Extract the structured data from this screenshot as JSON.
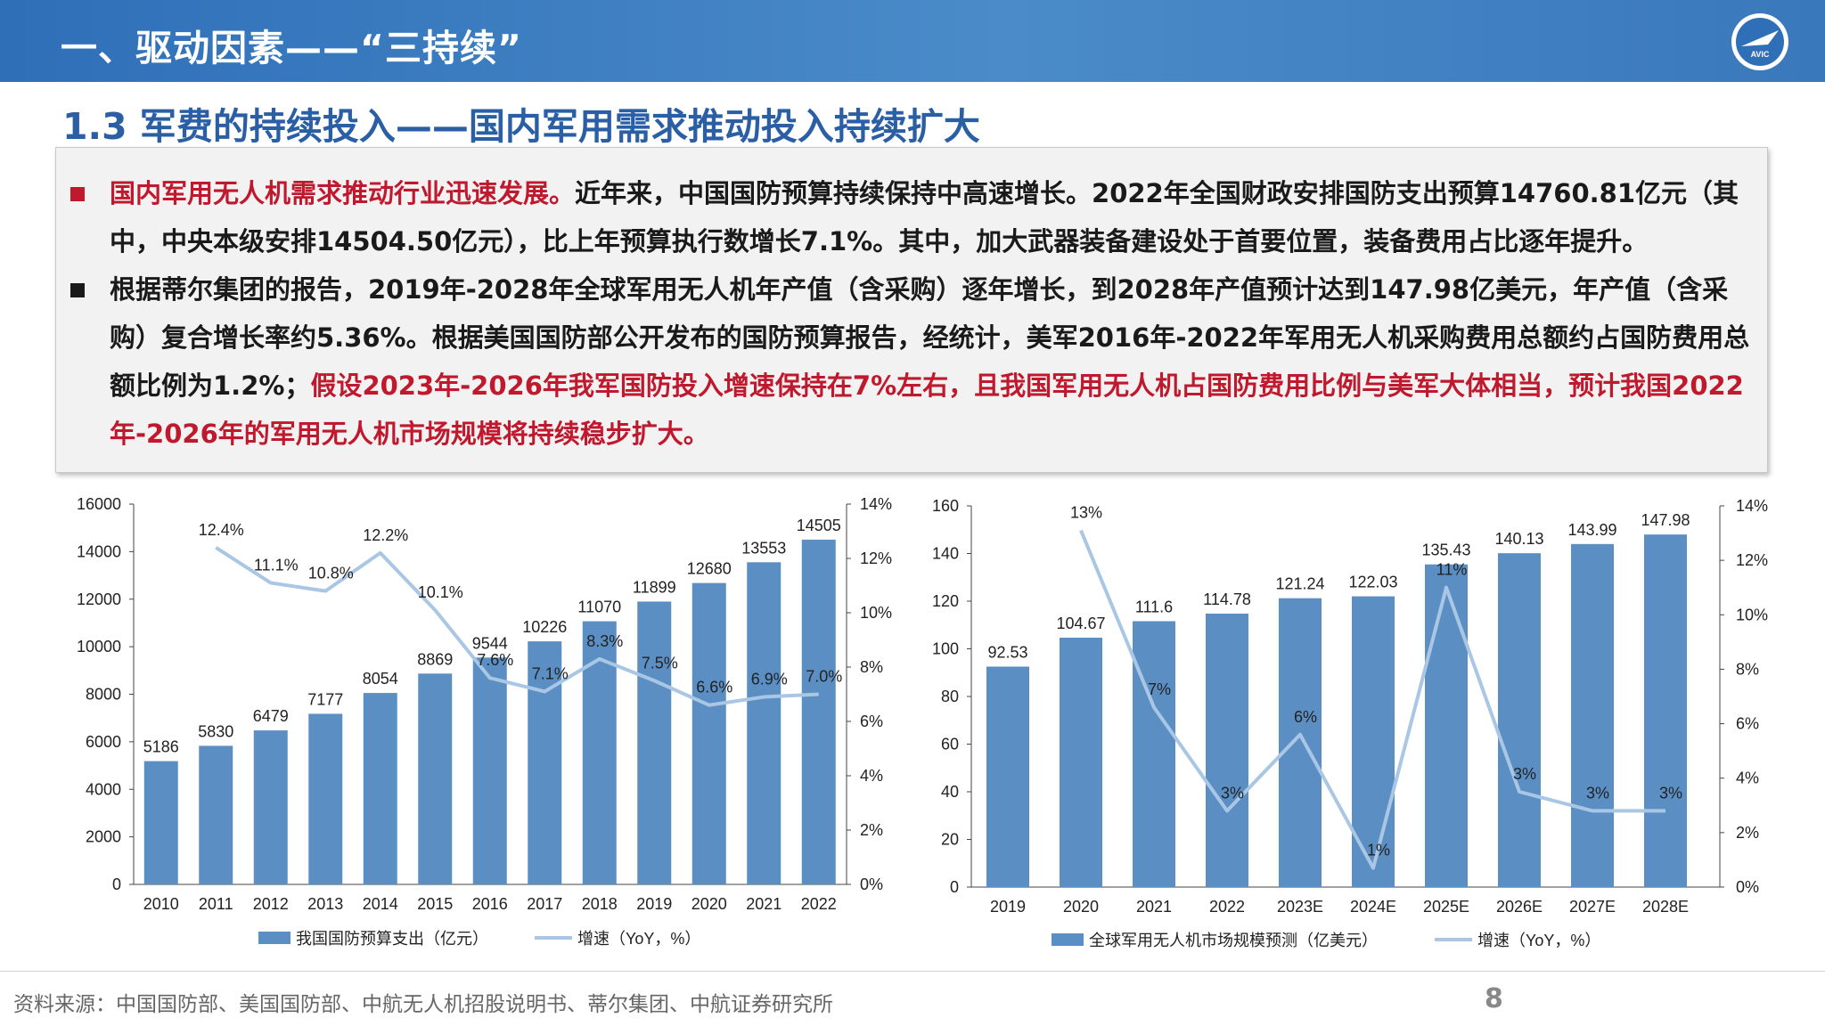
{
  "header": {
    "title": "一、驱动因素——“三持续”",
    "logo_text": "AVIC"
  },
  "subtitle": "1.3 军费的持续投入——国内军用需求推动投入持续扩大",
  "paragraphs": {
    "p1_red": "国内军用无人机需求推动行业迅速发展。",
    "p1_rest": "近年来，中国国防预算持续保持中高速增长。2022年全国财政安排国防支出预算14760.81亿元（其中，中央本级安排14504.50亿元），比上年预算执行数增长7.1%。其中，加大武器装备建设处于首要位置，装备费用占比逐年提升。",
    "p2_black": "根据蒂尔集团的报告，2019年-2028年全球军用无人机年产值（含采购）逐年增长，到2028年产值预计达到147.98亿美元，年产值（含采购）复合增长率约5.36%。根据美国国防部公开发布的国防预算报告，经统计，美军2016年-2022年军用无人机采购费用总额约占国防费用总额比例为1.2%；",
    "p2_red": "假设2023年-2026年我军国防投入增速保持在7%左右，且我国军用无人机占国防费用比例与美军大体相当，预计我国2022年-2026年的军用无人机市场规模将持续稳步扩大。"
  },
  "chart_data": [
    {
      "type": "bar",
      "categories": [
        "2010",
        "2011",
        "2012",
        "2013",
        "2014",
        "2015",
        "2016",
        "2017",
        "2018",
        "2019",
        "2020",
        "2021",
        "2022"
      ],
      "series": [
        {
          "name": "我国国防预算支出（亿元）",
          "type": "bar",
          "axis": "left",
          "values": [
            5186,
            5830,
            6479,
            7177,
            8054,
            8869,
            9544,
            10226,
            11070,
            11899,
            12680,
            13553,
            14505
          ],
          "labels": [
            "5186",
            "5830",
            "6479",
            "7177",
            "8054",
            "8869",
            "9544",
            "10226",
            "11070",
            "11899",
            "12680",
            "13553",
            "14505"
          ]
        },
        {
          "name": "增速（YoY，%）",
          "type": "line",
          "axis": "right",
          "values": [
            null,
            12.4,
            11.1,
            10.8,
            12.2,
            10.1,
            7.6,
            7.1,
            8.3,
            7.5,
            6.6,
            6.9,
            7.0
          ],
          "labels": [
            "",
            "12.4%",
            "11.1%",
            "10.8%",
            "12.2%",
            "10.1%",
            "7.6%",
            "7.1%",
            "8.3%",
            "7.5%",
            "6.6%",
            "6.9%",
            "7.0%"
          ]
        }
      ],
      "ylim": [
        0,
        16000
      ],
      "yticks": [
        "0",
        "2000",
        "4000",
        "6000",
        "8000",
        "10000",
        "12000",
        "14000",
        "16000"
      ],
      "y2lim": [
        0,
        14
      ],
      "y2ticks": [
        "0%",
        "2%",
        "4%",
        "6%",
        "8%",
        "10%",
        "12%",
        "14%"
      ],
      "legend": [
        "我国国防预算支出（亿元）",
        "增速（YoY，%）"
      ],
      "colors": {
        "bar": "#5b8fc4",
        "line": "#a9c6e4"
      }
    },
    {
      "type": "bar",
      "categories": [
        "2019",
        "2020",
        "2021",
        "2022",
        "2023E",
        "2024E",
        "2025E",
        "2026E",
        "2027E",
        "2028E"
      ],
      "series": [
        {
          "name": "全球军用无人机市场规模预测（亿美元）",
          "type": "bar",
          "axis": "left",
          "values": [
            92.53,
            104.67,
            111.6,
            114.78,
            121.24,
            122.03,
            135.43,
            140.13,
            143.99,
            147.98
          ],
          "labels": [
            "92.53",
            "104.67",
            "111.6",
            "114.78",
            "121.24",
            "122.03",
            "135.43",
            "140.13",
            "143.99",
            "147.98"
          ]
        },
        {
          "name": "增速（YoY，%）",
          "type": "line",
          "axis": "right",
          "values": [
            null,
            13.1,
            6.6,
            2.8,
            5.6,
            0.7,
            11.0,
            3.5,
            2.8,
            2.8
          ],
          "labels": [
            "",
            "13%",
            "7%",
            "3%",
            "6%",
            "1%",
            "11%",
            "3%",
            "3%",
            "3%"
          ]
        }
      ],
      "ylim": [
        0,
        160
      ],
      "yticks": [
        "0",
        "20",
        "40",
        "60",
        "80",
        "100",
        "120",
        "140",
        "160"
      ],
      "y2lim": [
        0,
        14
      ],
      "y2ticks": [
        "0%",
        "2%",
        "4%",
        "6%",
        "8%",
        "10%",
        "12%",
        "14%"
      ],
      "legend": [
        "全球军用无人机市场规模预测（亿美元）",
        "增速（YoY，%）"
      ],
      "colors": {
        "bar": "#5b8fc4",
        "line": "#a9c6e4"
      }
    }
  ],
  "footer": {
    "source": "资料来源：中国国防部、美国国防部、中航无人机招股说明书、蒂尔集团、中航证券研究所",
    "page": "8"
  }
}
